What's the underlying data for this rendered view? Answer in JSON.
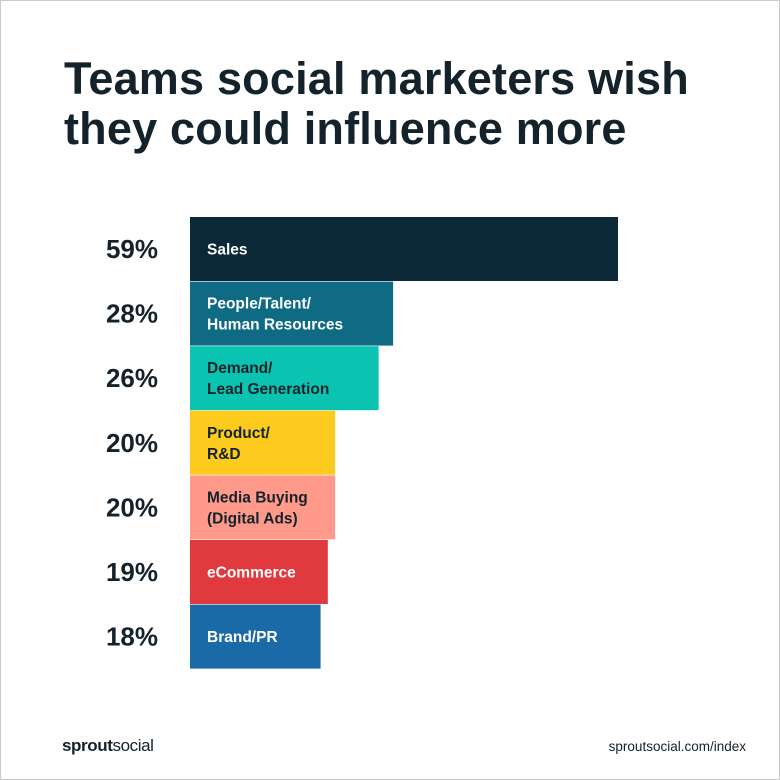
{
  "title_lines": [
    "Teams social marketers wish",
    "they could influence more"
  ],
  "brand": {
    "bold": "sprout",
    "light": "social"
  },
  "url": "sproutsocial.com/index",
  "chart_data": {
    "type": "bar",
    "orientation": "horizontal",
    "title": "Teams social marketers wish they could influence more",
    "value_suffix": "%",
    "grid": false,
    "xlim": [
      0,
      59
    ],
    "bars": [
      {
        "value": 59,
        "value_label": "59%",
        "label_lines": [
          "Sales"
        ],
        "color": "#0b2838",
        "text_color": "#ffffff"
      },
      {
        "value": 28,
        "value_label": "28%",
        "label_lines": [
          "People/Talent/",
          "Human Resources"
        ],
        "color": "#0f6a84",
        "text_color": "#ffffff"
      },
      {
        "value": 26,
        "value_label": "26%",
        "label_lines": [
          "Demand/",
          "Lead Generation"
        ],
        "color": "#0bc3b1",
        "text_color": "#13222b"
      },
      {
        "value": 20,
        "value_label": "20%",
        "label_lines": [
          "Product/",
          "R&D"
        ],
        "color": "#fccb1e",
        "text_color": "#13222b"
      },
      {
        "value": 20,
        "value_label": "20%",
        "label_lines": [
          "Media Buying",
          "(Digital Ads)"
        ],
        "color": "#ff9a8b",
        "text_color": "#13222b"
      },
      {
        "value": 19,
        "value_label": "19%",
        "label_lines": [
          "eCommerce"
        ],
        "color": "#e0393e",
        "text_color": "#ffffff"
      },
      {
        "value": 18,
        "value_label": "18%",
        "label_lines": [
          "Brand/PR"
        ],
        "color": "#1a6aa7",
        "text_color": "#ffffff"
      }
    ]
  }
}
